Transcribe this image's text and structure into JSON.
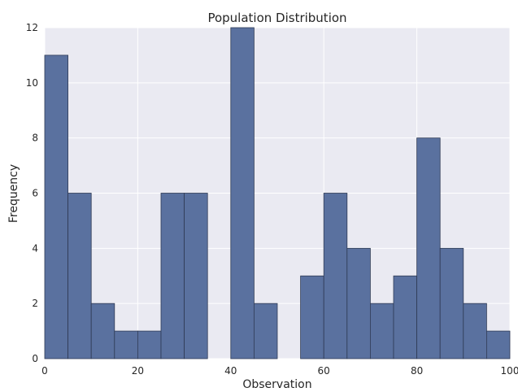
{
  "chart_data": {
    "type": "bar",
    "title": "Population Distribution",
    "xlabel": "Observation",
    "ylabel": "Frequency",
    "xlim": [
      0,
      100
    ],
    "ylim": [
      0,
      12
    ],
    "xticks": [
      "0",
      "20",
      "40",
      "60",
      "80",
      "100"
    ],
    "yticks": [
      "0",
      "2",
      "4",
      "6",
      "8",
      "10",
      "12"
    ],
    "bin_edges": [
      0,
      5,
      10,
      15,
      20,
      25,
      30,
      35,
      40,
      45,
      50,
      55,
      60,
      65,
      70,
      75,
      80,
      85,
      90,
      95,
      100
    ],
    "values": [
      11,
      6,
      2,
      1,
      1,
      6,
      6,
      0,
      12,
      2,
      0,
      3,
      6,
      4,
      2,
      3,
      8,
      4,
      2,
      1
    ],
    "grid": true,
    "colors": {
      "bar": "#5a719f",
      "background": "#eaeaf2"
    }
  }
}
